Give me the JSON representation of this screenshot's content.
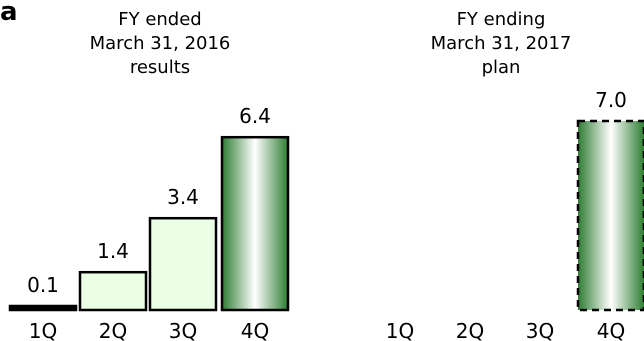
{
  "corner_text": "a",
  "chart_data": [
    {
      "type": "bar",
      "title_lines": [
        "FY ended",
        "March 31, 2016",
        "results"
      ],
      "categories": [
        "1Q",
        "2Q",
        "3Q",
        "4Q"
      ],
      "values": [
        0.1,
        1.4,
        3.4,
        6.4
      ],
      "data_labels": [
        "0.1",
        "1.4",
        "3.4",
        "6.4"
      ],
      "ylim": [
        0,
        8
      ],
      "grid": false,
      "colors": {
        "light_fill": "#eaffe4",
        "edge": "#000000",
        "dark_green": "#2e7d32"
      }
    },
    {
      "type": "bar",
      "title_lines": [
        "FY ending",
        "March 31, 2017",
        "plan"
      ],
      "categories": [
        "1Q",
        "2Q",
        "3Q",
        "4Q"
      ],
      "values": [
        null,
        null,
        null,
        7.0
      ],
      "data_labels": [
        "",
        "",
        "",
        "7.0"
      ],
      "ylim": [
        0,
        8
      ],
      "grid": false,
      "dashed_bars": [
        3
      ],
      "colors": {
        "edge": "#000000",
        "dark_green": "#2e7d32"
      }
    }
  ]
}
